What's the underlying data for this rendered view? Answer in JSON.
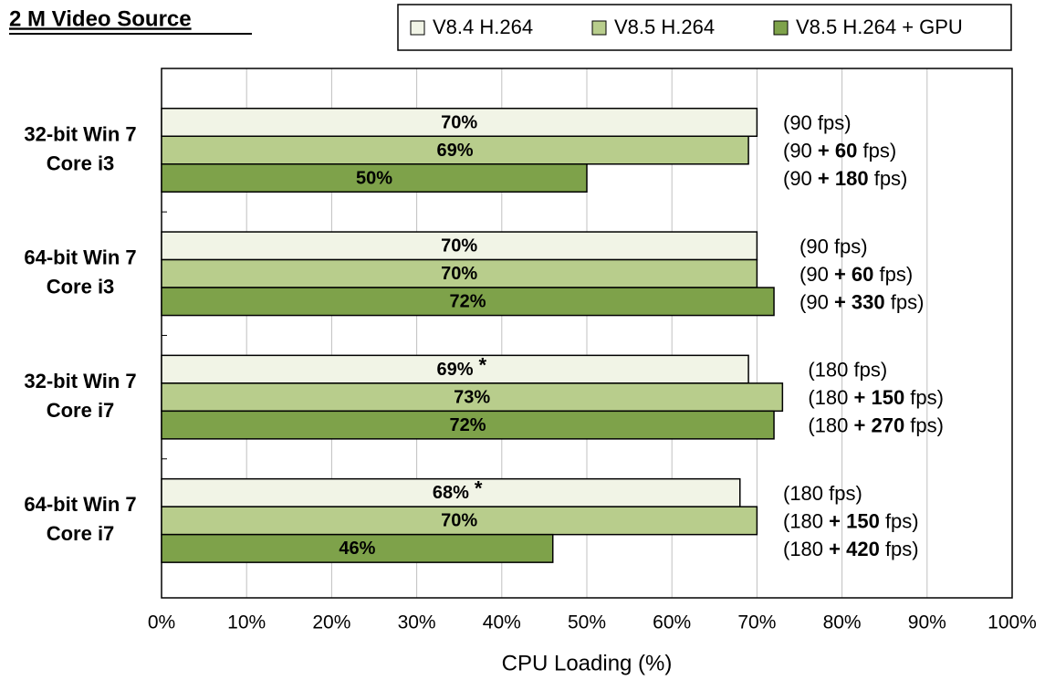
{
  "chart_data": {
    "type": "bar",
    "orientation": "horizontal",
    "title": "2 M Video Source",
    "x_label": "CPU Loading (%)",
    "categories": [
      [
        "32-bit Win 7",
        "Core i3"
      ],
      [
        "64-bit Win 7",
        "Core i3"
      ],
      [
        "32-bit Win 7",
        "Core i7"
      ],
      [
        "64-bit Win 7",
        "Core i7"
      ]
    ],
    "category_colors": [
      "#f07820",
      "#000000",
      "#000000",
      "#f07820"
    ],
    "series": [
      {
        "name": "V8.4 H.264",
        "color": "#f1f4e6",
        "values": [
          70,
          70,
          69,
          68
        ],
        "value_labels": [
          "70%",
          "70%",
          "69%",
          "68%"
        ]
      },
      {
        "name": "V8.5 H.264",
        "color": "#b8cd8c",
        "values": [
          69,
          70,
          73,
          70
        ],
        "value_labels": [
          "69%",
          "70%",
          "73%",
          "70%"
        ]
      },
      {
        "name": "V8.5 H.264 + GPU",
        "color": "#7ea24a",
        "values": [
          50,
          72,
          72,
          46
        ],
        "value_labels": [
          "50%",
          "72%",
          "72%",
          "46%"
        ]
      }
    ],
    "annotations": [
      {
        "text": "*",
        "series": 0,
        "category": 2,
        "color": "#e02020"
      },
      {
        "text": "*",
        "series": 0,
        "category": 3,
        "color": "#e02020"
      }
    ],
    "notes": [
      [
        {
          "text": "(90 fps)"
        },
        {
          "text": "(90 ",
          "bold": "+ 60",
          "end": " fps)"
        },
        {
          "text": "(90 ",
          "bold": "+ 180",
          "end": " fps)"
        }
      ],
      [
        {
          "text": "(90 fps)"
        },
        {
          "text": "(90 ",
          "bold": "+ 60",
          "end": " fps)"
        },
        {
          "text": "(90 ",
          "bold": "+ 330",
          "end": " fps)"
        }
      ],
      [
        {
          "text": "(180 fps)"
        },
        {
          "text": "(180 ",
          "bold": "+ 150",
          "end": " fps)"
        },
        {
          "text": "(180 ",
          "bold": "+ 270",
          "end": " fps)"
        }
      ],
      [
        {
          "text": "(180 fps)"
        },
        {
          "text": "(180 ",
          "bold": "+ 150",
          "end": " fps)"
        },
        {
          "text": "(180 ",
          "bold": "+ 420",
          "end": " fps)"
        }
      ]
    ],
    "xlim": [
      0,
      100
    ],
    "xticks": [
      {
        "value": 0,
        "label": "0%"
      },
      {
        "value": 10,
        "label": "10%"
      },
      {
        "value": 20,
        "label": "20%"
      },
      {
        "value": 30,
        "label": "30%"
      },
      {
        "value": 40,
        "label": "40%"
      },
      {
        "value": 50,
        "label": "50%"
      },
      {
        "value": 60,
        "label": "60%"
      },
      {
        "value": 70,
        "label": "70%"
      },
      {
        "value": 80,
        "label": "80%"
      },
      {
        "value": 90,
        "label": "90%"
      },
      {
        "value": 100,
        "label": "100%"
      }
    ],
    "grid": true,
    "legend": "top-right"
  }
}
